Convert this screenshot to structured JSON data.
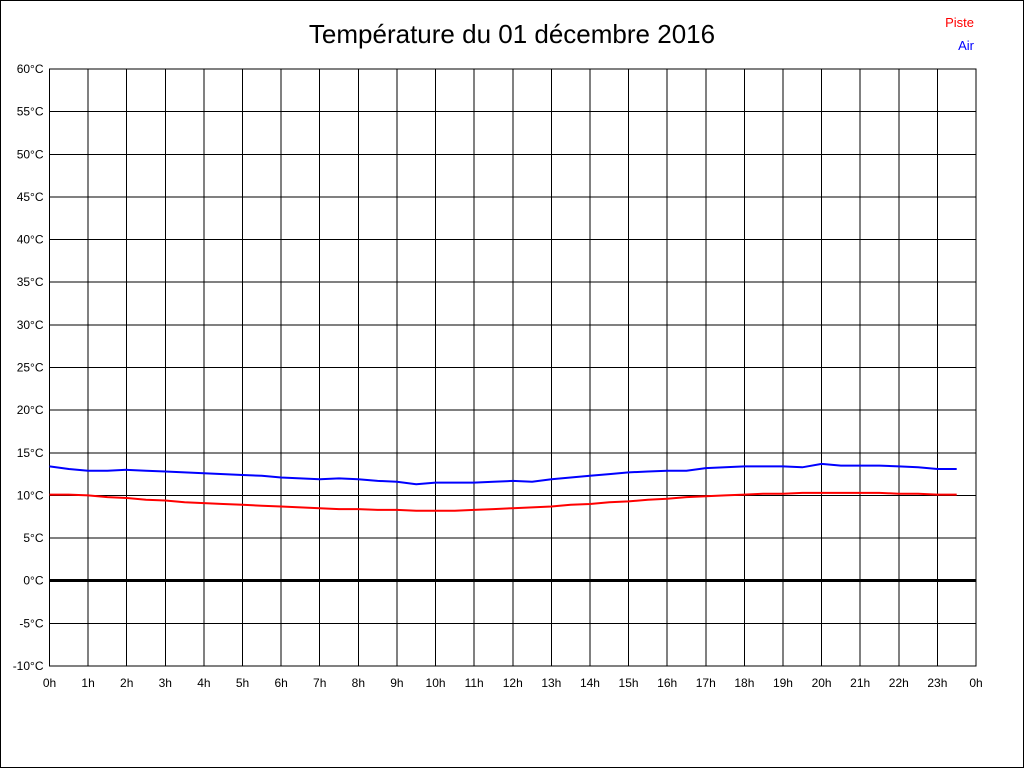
{
  "window": {
    "background_color": "#ffffff",
    "border_color": "#000000"
  },
  "chart_data": {
    "type": "line",
    "title": "Température du 01 décembre 2016",
    "xlabel": "",
    "ylabel": "",
    "x_unit": "hours",
    "y_unit": "°C",
    "xlim": [
      0,
      24
    ],
    "ylim": [
      -10,
      60
    ],
    "grid": "on",
    "grid_color": "#000000",
    "zero_line": {
      "value": 0,
      "color": "#000000",
      "width": 3
    },
    "x_tick_labels": [
      "0h",
      "1h",
      "2h",
      "3h",
      "4h",
      "5h",
      "6h",
      "7h",
      "8h",
      "9h",
      "10h",
      "11h",
      "12h",
      "13h",
      "14h",
      "15h",
      "16h",
      "17h",
      "18h",
      "19h",
      "20h",
      "21h",
      "22h",
      "23h",
      "0h"
    ],
    "y_tick_labels": [
      "60°C",
      "55°C",
      "50°C",
      "45°C",
      "40°C",
      "35°C",
      "30°C",
      "25°C",
      "20°C",
      "15°C",
      "10°C",
      "5°C",
      "0°C",
      "-5°C",
      "-10°C"
    ],
    "legend": {
      "position": "top-right",
      "entries": [
        {
          "label": "Piste",
          "color": "#ff0000"
        },
        {
          "label": "Air",
          "color": "#0000ff"
        }
      ]
    },
    "x": [
      0,
      0.5,
      1,
      1.5,
      2,
      2.5,
      3,
      3.5,
      4,
      4.5,
      5,
      5.5,
      6,
      6.5,
      7,
      7.5,
      8,
      8.5,
      9,
      9.5,
      10,
      10.5,
      11,
      11.5,
      12,
      12.5,
      13,
      13.5,
      14,
      14.5,
      15,
      15.5,
      16,
      16.5,
      17,
      17.5,
      18,
      18.5,
      19,
      19.5,
      20,
      20.5,
      21,
      21.5,
      22,
      22.5,
      23,
      23.5
    ],
    "series": [
      {
        "name": "Piste",
        "color": "#ff0000",
        "width": 2,
        "values": [
          10.1,
          10.1,
          10.0,
          9.8,
          9.7,
          9.5,
          9.4,
          9.2,
          9.1,
          9.0,
          8.9,
          8.8,
          8.7,
          8.6,
          8.5,
          8.4,
          8.4,
          8.3,
          8.3,
          8.2,
          8.2,
          8.2,
          8.3,
          8.4,
          8.5,
          8.6,
          8.7,
          8.9,
          9.0,
          9.2,
          9.3,
          9.5,
          9.6,
          9.8,
          9.9,
          10.0,
          10.1,
          10.2,
          10.2,
          10.3,
          10.3,
          10.3,
          10.3,
          10.3,
          10.2,
          10.2,
          10.1,
          10.1
        ]
      },
      {
        "name": "Air",
        "color": "#0000ff",
        "width": 2,
        "values": [
          13.4,
          13.1,
          12.9,
          12.9,
          13.0,
          12.9,
          12.8,
          12.7,
          12.6,
          12.5,
          12.4,
          12.3,
          12.1,
          12.0,
          11.9,
          12.0,
          11.9,
          11.7,
          11.6,
          11.3,
          11.5,
          11.5,
          11.5,
          11.6,
          11.7,
          11.6,
          11.9,
          12.1,
          12.3,
          12.5,
          12.7,
          12.8,
          12.9,
          12.9,
          13.2,
          13.3,
          13.4,
          13.4,
          13.4,
          13.3,
          13.7,
          13.5,
          13.5,
          13.5,
          13.4,
          13.3,
          13.1,
          13.1
        ]
      }
    ]
  }
}
